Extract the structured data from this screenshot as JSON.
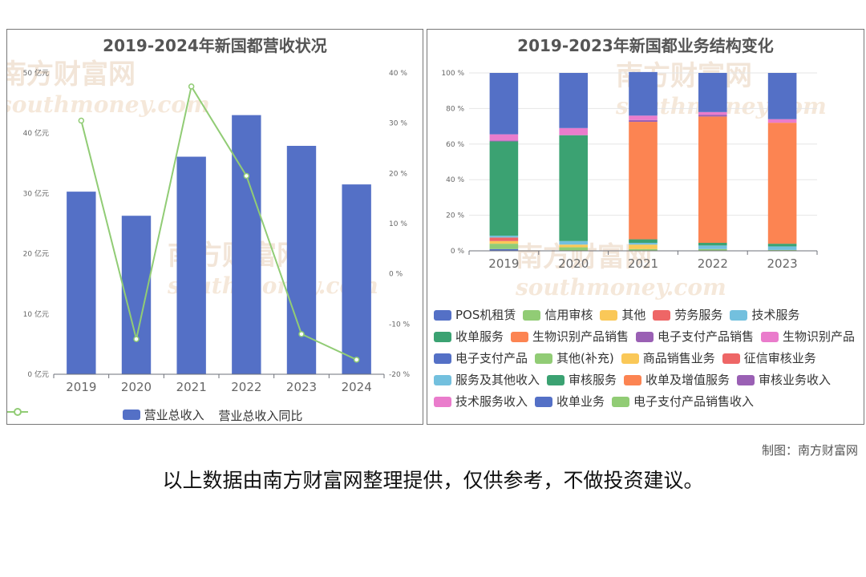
{
  "left": {
    "title": "2019-2024年新国都营收状况",
    "legend": [
      "营业总收入",
      "营业总收入同比"
    ]
  },
  "right": {
    "title": "2019-2023年新国都业务结构变化"
  },
  "credit": "制图：南方财富网",
  "disclaimer": "以上数据由南方财富网整理提供，仅供参考，不做投资建议。",
  "watermark": {
    "cn": "南方财富网",
    "en": "southmoney.com"
  },
  "colors": {
    "bar": "#5470c6",
    "line": "#91cc75"
  },
  "chart_data": [
    {
      "type": "bar",
      "title": "2019-2024年新国都营收状况",
      "categories": [
        "2019",
        "2020",
        "2021",
        "2022",
        "2023",
        "2024"
      ],
      "series": [
        {
          "name": "营业总收入",
          "type": "bar",
          "axis": "left",
          "values": [
            30.3,
            26.3,
            36.1,
            43.0,
            37.9,
            31.5
          ]
        },
        {
          "name": "营业总收入同比",
          "type": "line",
          "axis": "right",
          "values": [
            30.5,
            -13.0,
            37.3,
            19.5,
            -12.0,
            -17.1
          ]
        }
      ],
      "y_left": {
        "ylim": [
          0,
          50
        ],
        "ticks": [
          0,
          10,
          20,
          30,
          40,
          50
        ],
        "ticklabels": [
          "0 亿元",
          "10 亿元",
          "20 亿元",
          "30 亿元",
          "40 亿元",
          "50 亿元"
        ]
      },
      "y_right": {
        "ylim": [
          -20,
          40
        ],
        "ticks": [
          -20,
          -10,
          0,
          10,
          20,
          30,
          40
        ],
        "ticklabels": [
          "-20 %",
          "-10 %",
          "0 %",
          "10 %",
          "20 %",
          "30 %",
          "40 %"
        ]
      },
      "grid": false,
      "legend_position": "bottom"
    },
    {
      "type": "bar",
      "stacked": true,
      "title": "2019-2023年新国都业务结构变化",
      "categories": [
        "2019",
        "2020",
        "2021",
        "2022",
        "2023"
      ],
      "ylim": [
        0,
        100
      ],
      "yticks": [
        "0 %",
        "20 %",
        "40 %",
        "60 %",
        "80 %",
        "100 %"
      ],
      "grid": true,
      "legend_position": "bottom",
      "series": [
        {
          "name": "POS机租赁",
          "color": "#5470c6",
          "values": [
            1.0,
            0,
            0,
            0,
            0
          ]
        },
        {
          "name": "信用审核",
          "color": "#91cc75",
          "values": [
            3.0,
            0,
            0,
            0,
            0
          ]
        },
        {
          "name": "其他",
          "color": "#fac858",
          "values": [
            1.5,
            0,
            0,
            0,
            0
          ]
        },
        {
          "name": "劳务服务",
          "color": "#ee6666",
          "values": [
            2.0,
            0,
            0,
            0,
            0
          ]
        },
        {
          "name": "技术服务",
          "color": "#73c0de",
          "values": [
            1.0,
            0,
            0,
            0,
            0
          ]
        },
        {
          "name": "收单服务",
          "color": "#3ba272",
          "values": [
            53.0,
            0,
            0,
            0,
            0
          ]
        },
        {
          "name": "生物识别产品销售",
          "color": "#fc8452",
          "values": [
            0,
            0,
            0,
            0,
            0
          ]
        },
        {
          "name": "电子支付产品销售",
          "color": "#9a60b4",
          "values": [
            0.5,
            0,
            0,
            0,
            0
          ]
        },
        {
          "name": "生物识别产品",
          "color": "#ea7ccc",
          "values": [
            3.5,
            0,
            0,
            0,
            0
          ]
        },
        {
          "name": "电子支付产品",
          "color": "#5470c6",
          "values": [
            34.5,
            0,
            0,
            0,
            0
          ]
        },
        {
          "name": "其他(补充)",
          "color": "#91cc75",
          "values": [
            0,
            2.0,
            1.0,
            1.0,
            0.5
          ]
        },
        {
          "name": "商品销售业务",
          "color": "#fac858",
          "values": [
            0,
            1.5,
            2.5,
            0,
            0
          ]
        },
        {
          "name": "征信审核业务",
          "color": "#ee6666",
          "values": [
            0,
            0,
            0,
            0,
            0
          ]
        },
        {
          "name": "服务及其他收入",
          "color": "#73c0de",
          "values": [
            0,
            2.0,
            1.0,
            2.0,
            2.0
          ]
        },
        {
          "name": "审核服务",
          "color": "#3ba272",
          "values": [
            0,
            59.5,
            2.0,
            1.5,
            1.5
          ]
        },
        {
          "name": "收单及增值服务",
          "color": "#fc8452",
          "values": [
            0,
            0,
            66.0,
            71.0,
            68.0
          ]
        },
        {
          "name": "审核业务收入",
          "color": "#9a60b4",
          "values": [
            0,
            0,
            1.0,
            1.0,
            0
          ]
        },
        {
          "name": "技术服务收入",
          "color": "#ea7ccc",
          "values": [
            0,
            4.0,
            2.5,
            1.5,
            2.0
          ]
        },
        {
          "name": "收单业务",
          "color": "#5470c6",
          "values": [
            0,
            31.0,
            24.5,
            22.0,
            26.0
          ]
        },
        {
          "name": "电子支付产品销售收入",
          "color": "#91cc75",
          "values": [
            0,
            0,
            0,
            0,
            0
          ]
        }
      ]
    }
  ]
}
